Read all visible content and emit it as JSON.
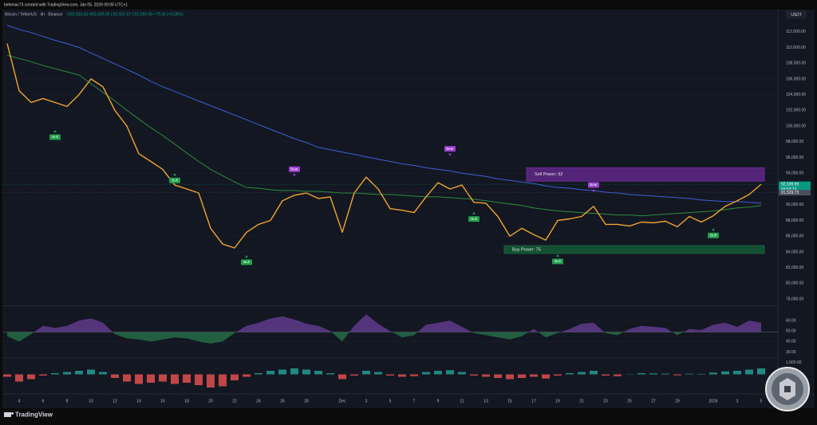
{
  "header": {
    "credit": "belemac73 created with TradingView.com, Jan 05, 2026 09:06 UTC+1",
    "symbol": "Bitcoin / TetherUS · 4h · Binance",
    "ohlc": "O92,533.63 H92,600.00 L92,501.57 C92,599.99 +79.36 (+0.09%)",
    "currency": "USDT",
    "countdown": "03:53:13"
  },
  "footer": {
    "brand": "TradingView"
  },
  "chart_data": [
    {
      "type": "line",
      "categories": [
        null,
        "4",
        null,
        "6",
        null,
        "8",
        null,
        "10",
        null,
        "12",
        null,
        "14",
        null,
        "16",
        null,
        "18",
        null,
        "20",
        null,
        "22",
        null,
        "24",
        null,
        "26",
        null,
        "28",
        null,
        null,
        "Dec",
        null,
        "3",
        null,
        "5",
        null,
        "7",
        null,
        "9",
        null,
        "11",
        null,
        "13",
        null,
        "15",
        null,
        "17",
        null,
        "19",
        null,
        "21",
        null,
        "23",
        null,
        "25",
        null,
        "27",
        null,
        "29",
        null,
        null,
        "2026",
        null,
        "3",
        null,
        "5"
      ],
      "series": [
        {
          "color": "#f0a52e",
          "values": [
            110500,
            104500,
            103000,
            103500,
            103000,
            102500,
            104000,
            106000,
            105000,
            102000,
            100000,
            96500,
            95500,
            94500,
            92500,
            92000,
            91500,
            87000,
            85000,
            84500,
            86500,
            87500,
            88000,
            90500,
            91200,
            91500,
            90800,
            91000,
            86500,
            91500,
            93500,
            92000,
            89500,
            89300,
            89000,
            91000,
            92800,
            92000,
            92500,
            90300,
            90200,
            88500,
            86000,
            87000,
            86200,
            85500,
            88000,
            88200,
            88500,
            89800,
            87500,
            87500,
            87300,
            87800,
            87700,
            87900,
            87200,
            88500,
            87800,
            88600,
            89800,
            90500,
            91300,
            92600
          ]
        },
        {
          "color": "#3f5fd6",
          "values": [
            112800,
            112300,
            111900,
            111400,
            110900,
            110500,
            110000,
            109300,
            108600,
            107900,
            107200,
            106500,
            105700,
            105000,
            104400,
            103800,
            103200,
            102600,
            102000,
            101400,
            100800,
            100200,
            99600,
            99000,
            98400,
            97900,
            97300,
            97000,
            96700,
            96400,
            96100,
            95800,
            95500,
            95200,
            95000,
            94700,
            94500,
            94300,
            94000,
            93800,
            93600,
            93300,
            93100,
            92900,
            92700,
            92400,
            92200,
            92100,
            91900,
            91800,
            91600,
            91500,
            91300,
            91200,
            91100,
            91000,
            90900,
            90800,
            90600,
            90500,
            90400,
            90400,
            90300,
            90200
          ]
        },
        {
          "color": "#2e8b3e",
          "values": [
            109000,
            108600,
            108200,
            107700,
            107300,
            106900,
            106500,
            105400,
            104300,
            103200,
            102000,
            100900,
            99800,
            98800,
            97700,
            96600,
            95500,
            94500,
            93700,
            92900,
            92200,
            92100,
            91900,
            91800,
            91800,
            91700,
            91700,
            91600,
            91500,
            91500,
            91400,
            91300,
            91300,
            91200,
            91100,
            91000,
            91000,
            90900,
            90800,
            90700,
            90500,
            90300,
            90100,
            89900,
            89600,
            89400,
            89200,
            89100,
            89000,
            88900,
            88800,
            88700,
            88700,
            88600,
            88700,
            88800,
            88900,
            89000,
            89100,
            89200,
            89400,
            89600,
            89700,
            89900
          ]
        }
      ],
      "markers": [
        {
          "label": "Bull",
          "color": "#1f9e4a",
          "values": [
            null,
            null,
            null,
            null,
            99300,
            null,
            null,
            null,
            null,
            null,
            null,
            null,
            null,
            null,
            93800,
            null,
            null,
            null,
            null,
            null,
            83400,
            null,
            null,
            null,
            null,
            null,
            null,
            null,
            null,
            null,
            null,
            null,
            null,
            null,
            null,
            null,
            null,
            null,
            null,
            88900,
            null,
            null,
            null,
            null,
            null,
            null,
            83500,
            null,
            null,
            null,
            null,
            null,
            null,
            null,
            null,
            null,
            null,
            null,
            null,
            86800,
            null,
            null,
            null,
            null
          ]
        },
        {
          "label": "Bear",
          "color": "#9b3fd0",
          "values": [
            null,
            null,
            null,
            null,
            null,
            null,
            null,
            null,
            null,
            null,
            null,
            null,
            null,
            null,
            null,
            null,
            null,
            null,
            null,
            null,
            null,
            null,
            null,
            null,
            93800,
            null,
            null,
            null,
            null,
            null,
            null,
            null,
            null,
            null,
            null,
            null,
            null,
            96400,
            null,
            null,
            null,
            null,
            null,
            null,
            null,
            null,
            null,
            null,
            null,
            91800,
            null,
            null,
            null,
            null,
            null,
            null,
            null,
            null,
            null,
            null,
            null,
            null,
            null,
            null
          ]
        }
      ],
      "zones": [
        {
          "label": "Sell Power: 52",
          "color": "#6a2a94",
          "low": 93000,
          "high": 94700
        },
        {
          "label": "Buy Power: 75",
          "color": "#14633a",
          "low": 83800,
          "high": 84800
        }
      ],
      "price_labels": [
        {
          "value": 92599.99,
          "label": "92,599.99",
          "color": "#089981"
        },
        {
          "value": 91529.73,
          "label": "91,529.73",
          "color": "#4a4f5c"
        }
      ],
      "ylim": [
        77300,
        113500
      ],
      "yticks": [
        {
          "value": 112000,
          "label": "112,000.00"
        },
        {
          "value": 110000,
          "label": "110,000.00"
        },
        {
          "value": 108000,
          "label": "108,000.00"
        },
        {
          "value": 106000,
          "label": "106,000.00"
        },
        {
          "value": 104000,
          "label": "104,000.00"
        },
        {
          "value": 102000,
          "label": "102,000.00"
        },
        {
          "value": 100000,
          "label": "100,000.00"
        },
        {
          "value": 98000,
          "label": "98,000.00"
        },
        {
          "value": 96000,
          "label": "96,000.00"
        },
        {
          "value": 94000,
          "label": "94,000.00"
        },
        {
          "value": 92000,
          "label": "92,000.00"
        },
        {
          "value": 90000,
          "label": "90,000.00"
        },
        {
          "value": 88000,
          "label": "88,000.00"
        },
        {
          "value": 86000,
          "label": "86,000.00"
        },
        {
          "value": 84000,
          "label": "84,000.00"
        },
        {
          "value": 82000,
          "label": "82,000.00"
        },
        {
          "value": 80000,
          "label": "80,000.00"
        },
        {
          "value": 78000,
          "label": "78,000.00"
        }
      ],
      "grid": true
    },
    {
      "type": "area",
      "color": "#8a4fc7",
      "negative_color": "#2e9a5a",
      "values": [
        45,
        40,
        47,
        55,
        53,
        55,
        60,
        62,
        58,
        47,
        43,
        42,
        40,
        42,
        44,
        43,
        40,
        38,
        40,
        48,
        55,
        58,
        62,
        64,
        61,
        57,
        55,
        50,
        40,
        55,
        66,
        57,
        50,
        44,
        46,
        56,
        58,
        60,
        54,
        48,
        46,
        44,
        42,
        45,
        52,
        44,
        48,
        52,
        57,
        58,
        48,
        46,
        52,
        55,
        54,
        53,
        46,
        52,
        51,
        56,
        58,
        54,
        60,
        58
      ],
      "ylim": [
        25,
        73
      ],
      "yticks": [
        {
          "value": 60,
          "label": "60.00"
        },
        {
          "value": 50,
          "label": "50.00"
        },
        {
          "value": 40,
          "label": "40.00"
        },
        {
          "value": 30,
          "label": "30.00"
        }
      ],
      "grid": true
    },
    {
      "type": "bar",
      "color": "#26a69a",
      "negative_color": "#ef5350",
      "values": [
        -200,
        -600,
        -400,
        -100,
        100,
        200,
        300,
        400,
        200,
        -300,
        -600,
        -800,
        -700,
        -600,
        -800,
        -700,
        -900,
        -1100,
        -1000,
        -500,
        -200,
        100,
        300,
        400,
        500,
        400,
        300,
        100,
        -400,
        -100,
        300,
        200,
        -100,
        -200,
        -150,
        200,
        300,
        350,
        200,
        -100,
        -200,
        -300,
        -400,
        -300,
        -200,
        -350,
        -100,
        100,
        200,
        300,
        -100,
        -150,
        0,
        100,
        80,
        60,
        -80,
        50,
        40,
        150,
        250,
        300,
        400,
        500
      ],
      "ylim": [
        -1500,
        1300
      ],
      "yticks": [
        {
          "value": 1000,
          "label": "1,000.00"
        }
      ],
      "grid": true
    }
  ]
}
